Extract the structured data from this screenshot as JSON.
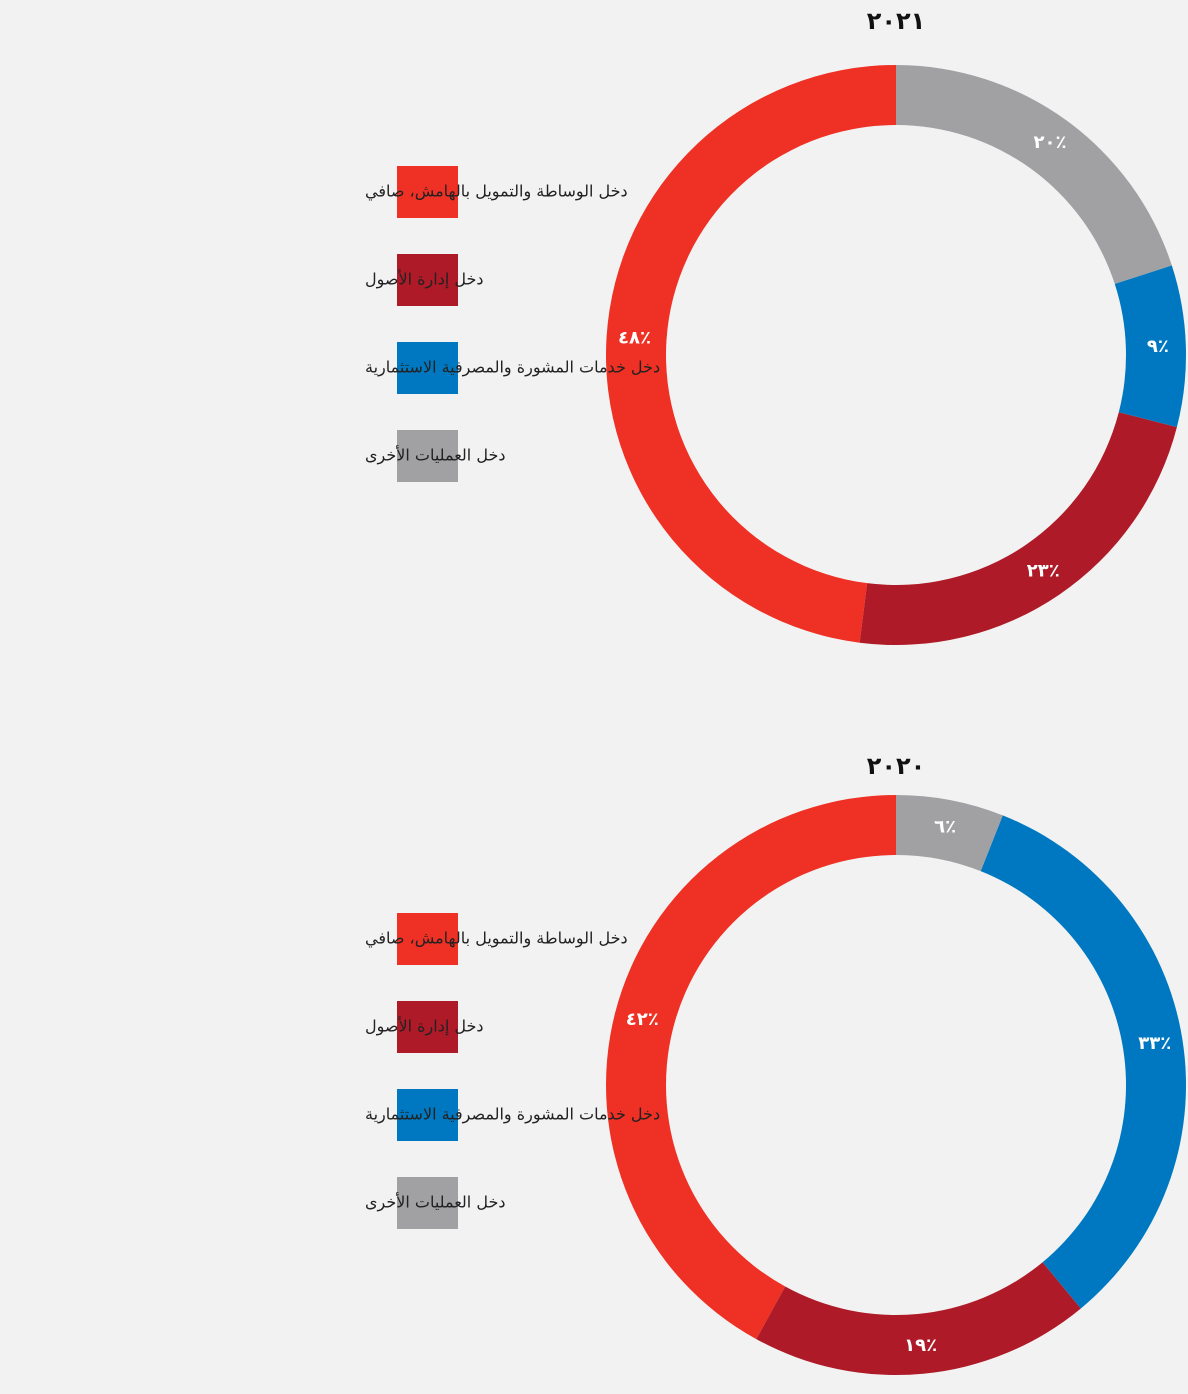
{
  "chart_data": [
    {
      "type": "donut",
      "title": "٢٠٢١",
      "categories": [
        "دخل الوساطة والتمويل بالهامش، صافي",
        "دخل إدارة الأصول",
        "دخل خدمات المشورة والمصرفية الاستثمارية",
        "دخل العمليات الأخرى"
      ],
      "values": [
        48,
        23,
        9,
        20
      ],
      "value_labels": [
        "٤٨٪",
        "٢٣٪",
        "٩٪",
        "٢٠٪"
      ],
      "colors": [
        "#ee3124",
        "#ae1a27",
        "#0078c1",
        "#a1a1a4"
      ]
    },
    {
      "type": "donut",
      "title": "٢٠٢٠",
      "categories": [
        "دخل الوساطة والتمويل بالهامش، صافي",
        "دخل إدارة الأصول",
        "دخل خدمات المشورة والمصرفية الاستثمارية",
        "دخل العمليات الأخرى"
      ],
      "values": [
        42,
        19,
        33,
        6
      ],
      "value_labels": [
        "٤٢٪",
        "١٩٪",
        "٣٣٪",
        "٦٪"
      ],
      "colors": [
        "#ee3124",
        "#ae1a27",
        "#0078c1",
        "#a1a1a4"
      ]
    }
  ]
}
